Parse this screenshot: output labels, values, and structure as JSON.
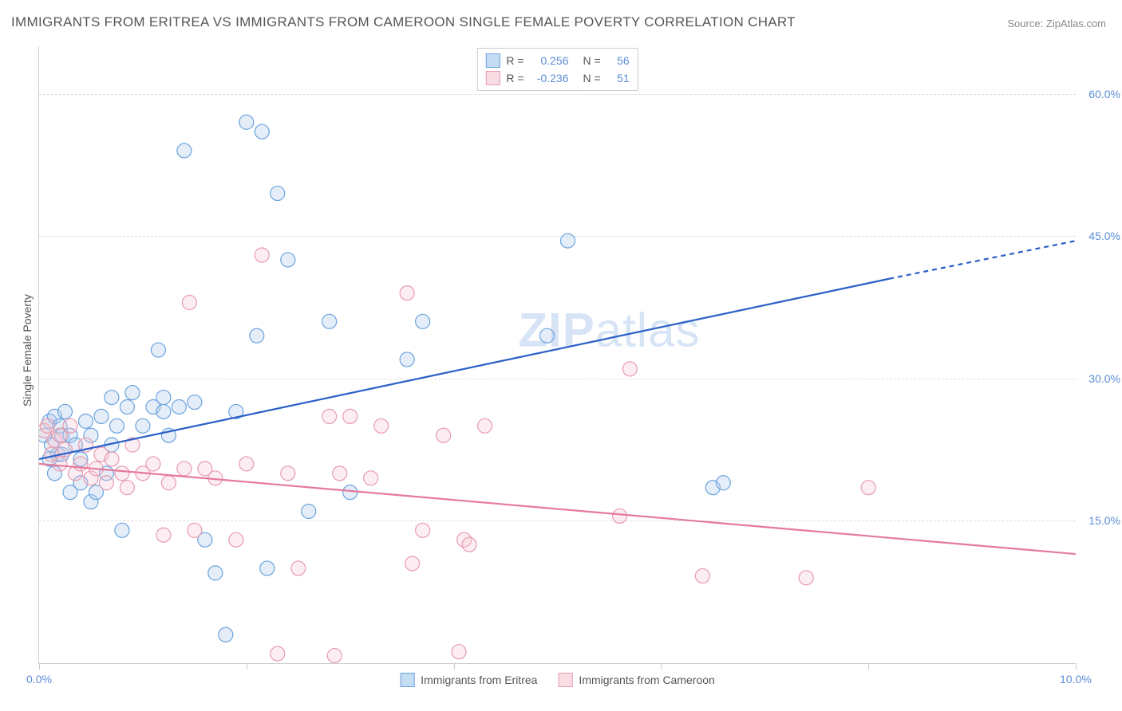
{
  "title": "IMMIGRANTS FROM ERITREA VS IMMIGRANTS FROM CAMEROON SINGLE FEMALE POVERTY CORRELATION CHART",
  "source": "Source: ZipAtlas.com",
  "watermark_bold": "ZIP",
  "watermark_rest": "atlas",
  "y_axis_label": "Single Female Poverty",
  "chart": {
    "type": "scatter-with-regression",
    "background_color": "#ffffff",
    "grid_color": "#dddddd",
    "axis_color": "#cccccc",
    "tick_label_color": "#5b8dd6",
    "axis_label_color": "#555555",
    "xlim": [
      0,
      10
    ],
    "ylim": [
      0,
      65
    ],
    "x_ticks": [
      0,
      2,
      4,
      6,
      8,
      10
    ],
    "x_tick_labels": [
      "0.0%",
      "",
      "",
      "",
      "",
      "10.0%"
    ],
    "y_ticks": [
      15,
      30,
      45,
      60
    ],
    "y_tick_labels": [
      "15.0%",
      "30.0%",
      "45.0%",
      "60.0%"
    ],
    "marker_radius": 9,
    "marker_fill_opacity": 0.32,
    "marker_stroke_width": 1.2,
    "line_width": 2.2,
    "series": [
      {
        "name": "Immigrants from Eritrea",
        "color_stroke": "#6aa3e0",
        "color_fill": "#aecae8",
        "swatch_border": "#6aa3e0",
        "swatch_fill": "#c5ddf3",
        "line_color": "#2a5fc7",
        "R": "0.256",
        "N": "56",
        "regression": {
          "x1": 0,
          "y1": 21.5,
          "x2": 8.2,
          "y2": 40.5
        },
        "regression_dash": {
          "x1": 8.2,
          "y1": 40.5,
          "x2": 10,
          "y2": 44.5
        },
        "points": [
          [
            0.05,
            24
          ],
          [
            0.1,
            25.5
          ],
          [
            0.1,
            21.5
          ],
          [
            0.12,
            23
          ],
          [
            0.15,
            26
          ],
          [
            0.15,
            20
          ],
          [
            0.18,
            22
          ],
          [
            0.2,
            25
          ],
          [
            0.22,
            24
          ],
          [
            0.22,
            22
          ],
          [
            0.25,
            26.5
          ],
          [
            0.3,
            18
          ],
          [
            0.3,
            24
          ],
          [
            0.35,
            23
          ],
          [
            0.4,
            19
          ],
          [
            0.4,
            21.5
          ],
          [
            0.45,
            25.5
          ],
          [
            0.5,
            17
          ],
          [
            0.5,
            24
          ],
          [
            0.55,
            18
          ],
          [
            0.6,
            26
          ],
          [
            0.65,
            20
          ],
          [
            0.7,
            23
          ],
          [
            0.7,
            28
          ],
          [
            0.75,
            25
          ],
          [
            0.8,
            14
          ],
          [
            0.85,
            27
          ],
          [
            0.9,
            28.5
          ],
          [
            1.0,
            25
          ],
          [
            1.1,
            27
          ],
          [
            1.15,
            33
          ],
          [
            1.2,
            26.5
          ],
          [
            1.2,
            28
          ],
          [
            1.25,
            24
          ],
          [
            1.35,
            27
          ],
          [
            1.4,
            54
          ],
          [
            1.5,
            27.5
          ],
          [
            1.6,
            13
          ],
          [
            1.7,
            9.5
          ],
          [
            1.8,
            3
          ],
          [
            1.9,
            26.5
          ],
          [
            2.0,
            57
          ],
          [
            2.1,
            34.5
          ],
          [
            2.15,
            56
          ],
          [
            2.2,
            10
          ],
          [
            2.3,
            49.5
          ],
          [
            2.4,
            42.5
          ],
          [
            2.6,
            16
          ],
          [
            2.8,
            36
          ],
          [
            3.0,
            18
          ],
          [
            3.55,
            32
          ],
          [
            3.7,
            36
          ],
          [
            4.9,
            34.5
          ],
          [
            5.1,
            44.5
          ],
          [
            6.5,
            18.5
          ],
          [
            6.6,
            19
          ]
        ]
      },
      {
        "name": "Immigrants from Cameroon",
        "color_stroke": "#e89bb0",
        "color_fill": "#f4c7d2",
        "swatch_border": "#e89bb0",
        "swatch_fill": "#f8dde4",
        "line_color": "#e67a9b",
        "R": "-0.236",
        "N": "51",
        "regression": {
          "x1": 0,
          "y1": 21.0,
          "x2": 10,
          "y2": 11.5
        },
        "points": [
          [
            0.05,
            24.5
          ],
          [
            0.08,
            25
          ],
          [
            0.12,
            22
          ],
          [
            0.15,
            23.5
          ],
          [
            0.2,
            24
          ],
          [
            0.2,
            21
          ],
          [
            0.25,
            22.5
          ],
          [
            0.3,
            25
          ],
          [
            0.35,
            20
          ],
          [
            0.4,
            21
          ],
          [
            0.45,
            23
          ],
          [
            0.5,
            19.5
          ],
          [
            0.55,
            20.5
          ],
          [
            0.6,
            22
          ],
          [
            0.65,
            19
          ],
          [
            0.7,
            21.5
          ],
          [
            0.8,
            20
          ],
          [
            0.85,
            18.5
          ],
          [
            0.9,
            23
          ],
          [
            1.0,
            20
          ],
          [
            1.1,
            21
          ],
          [
            1.2,
            13.5
          ],
          [
            1.25,
            19
          ],
          [
            1.4,
            20.5
          ],
          [
            1.45,
            38
          ],
          [
            1.5,
            14
          ],
          [
            1.6,
            20.5
          ],
          [
            1.7,
            19.5
          ],
          [
            1.9,
            13
          ],
          [
            2.0,
            21
          ],
          [
            2.15,
            43
          ],
          [
            2.3,
            1.0
          ],
          [
            2.4,
            20
          ],
          [
            2.5,
            10
          ],
          [
            2.8,
            26
          ],
          [
            2.85,
            0.8
          ],
          [
            2.9,
            20
          ],
          [
            3.0,
            26
          ],
          [
            3.2,
            19.5
          ],
          [
            3.3,
            25
          ],
          [
            3.55,
            39
          ],
          [
            3.6,
            10.5
          ],
          [
            3.7,
            14
          ],
          [
            3.9,
            24
          ],
          [
            4.05,
            1.2
          ],
          [
            4.1,
            13
          ],
          [
            4.15,
            12.5
          ],
          [
            4.3,
            25
          ],
          [
            5.6,
            15.5
          ],
          [
            5.7,
            31
          ],
          [
            6.4,
            9.2
          ],
          [
            7.4,
            9
          ],
          [
            8.0,
            18.5
          ]
        ]
      }
    ]
  },
  "legend_top": {
    "r_label": "R =",
    "n_label": "N ="
  },
  "fontsize_title": 17,
  "fontsize_axis": 14
}
